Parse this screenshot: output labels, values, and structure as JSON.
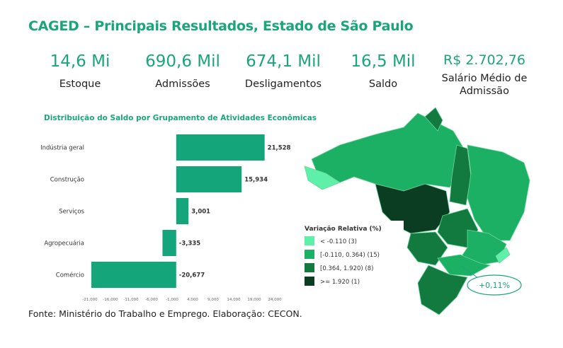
{
  "title": "CAGED – Principais Resultados, Estado de São Paulo",
  "stats": [
    {
      "value": "14,6 Mi",
      "label": "Estoque"
    },
    {
      "value": "690,6 Mil",
      "label": "Admissões"
    },
    {
      "value": "674,1 Mil",
      "label": "Desligamentos"
    },
    {
      "value": "16,5 Mil",
      "label": "Saldo"
    },
    {
      "value": "R$ 2.702,76",
      "label": "Salário Médio de Admissão"
    }
  ],
  "chart_data": {
    "type": "bar",
    "orientation": "horizontal",
    "title": "Distribuição do Saldo por Grupamento de Atividades Econômicas",
    "categories": [
      "Indústria geral",
      "Construção",
      "Serviços",
      "Agropecuária",
      "Comércio"
    ],
    "values": [
      21528,
      15934,
      3001,
      -3335,
      -20677
    ],
    "data_labels": [
      "21,528",
      "15,934",
      "3,001",
      "-3,335",
      "-20,677"
    ],
    "xlim": [
      -21000,
      24000
    ],
    "xticks": [
      "-21,000",
      "-16,000",
      "-11,000",
      "-6,000",
      "-1,000",
      "4,000",
      "9,000",
      "14,000",
      "19,000",
      "24,000"
    ],
    "bar_color": "#14a57b"
  },
  "map": {
    "legend_title": "Variação Relativa (%)",
    "legend": [
      {
        "label": "< -0.110 (3)",
        "color": "#5ef0a8"
      },
      {
        "label": "[-0.110, 0.364) (15)",
        "color": "#1bb064"
      },
      {
        "label": "[0.364, 1.920) (8)",
        "color": "#127a3f"
      },
      {
        "label": ">= 1.920 (1)",
        "color": "#0a3d22"
      }
    ],
    "callout": "+0,11%"
  },
  "footer": "Fonte: Ministério do Trabalho e Emprego. Elaboração: CECON."
}
